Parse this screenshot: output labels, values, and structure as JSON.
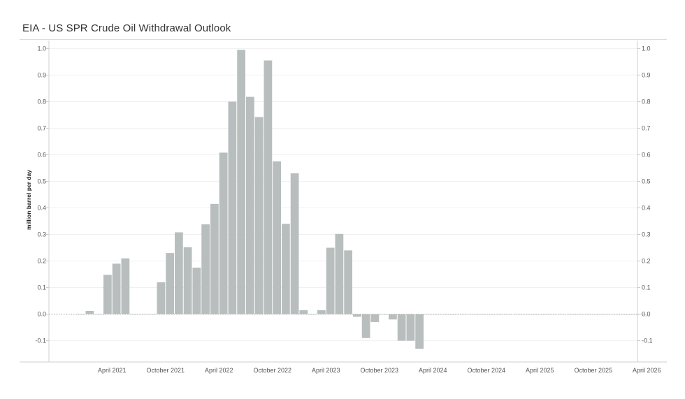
{
  "chart_data": {
    "type": "bar",
    "title": "EIA - US SPR Crude Oil Withdrawal Outlook",
    "ylabel": "million barrel per day",
    "xlabel": "",
    "ylim": [
      -0.18,
      1.03
    ],
    "y_ticks": [
      1.0,
      0.9,
      0.8,
      0.7,
      0.6,
      0.5,
      0.4,
      0.3,
      0.2,
      0.1,
      0.0,
      -0.1
    ],
    "y_tick_labels": [
      "1.0",
      "0.9",
      "0.8",
      "0.7",
      "0.6",
      "0.5",
      "0.4",
      "0.3",
      "0.2",
      "0.1",
      "0.0",
      "-0.1"
    ],
    "x_range": [
      "2020-09",
      "2026-05"
    ],
    "x_ticks": [
      {
        "month": "2021-04",
        "label": "April 2021"
      },
      {
        "month": "2021-10",
        "label": "October 2021"
      },
      {
        "month": "2022-04",
        "label": "April 2022"
      },
      {
        "month": "2022-10",
        "label": "October 2022"
      },
      {
        "month": "2023-04",
        "label": "April 2023"
      },
      {
        "month": "2023-10",
        "label": "October 2023"
      },
      {
        "month": "2024-04",
        "label": "April 2024"
      },
      {
        "month": "2024-10",
        "label": "October 2024"
      },
      {
        "month": "2025-04",
        "label": "April 2025"
      },
      {
        "month": "2025-10",
        "label": "October 2025"
      },
      {
        "month": "2026-04",
        "label": "April 2026"
      }
    ],
    "bar_color": "#b8bebd",
    "grid": true,
    "months": [
      "2020-12",
      "2021-01",
      "2021-02",
      "2021-03",
      "2021-04",
      "2021-05",
      "2021-06",
      "2021-07",
      "2021-08",
      "2021-09",
      "2021-10",
      "2021-11",
      "2021-12",
      "2022-01",
      "2022-02",
      "2022-03",
      "2022-04",
      "2022-05",
      "2022-06",
      "2022-07",
      "2022-08",
      "2022-09",
      "2022-10",
      "2022-11",
      "2022-12",
      "2023-01",
      "2023-02",
      "2023-03",
      "2023-04",
      "2023-05",
      "2023-06",
      "2023-07",
      "2023-08",
      "2023-09",
      "2023-10",
      "2023-11",
      "2023-12",
      "2024-01",
      "2024-02",
      "2024-03",
      "2024-04",
      "2024-05",
      "2024-06",
      "2024-07",
      "2024-08",
      "2024-09",
      "2024-10",
      "2024-11",
      "2024-12",
      "2025-01",
      "2025-02",
      "2025-03",
      "2025-04",
      "2025-05",
      "2025-06",
      "2025-07",
      "2025-08",
      "2025-09",
      "2025-10",
      "2025-11",
      "2025-12",
      "2026-01",
      "2026-02",
      "2026-03"
    ],
    "values": [
      0.0,
      0.012,
      0.0,
      0.148,
      0.19,
      0.21,
      0.0,
      0.0,
      0.0,
      0.12,
      0.23,
      0.308,
      0.252,
      0.175,
      0.338,
      0.415,
      0.608,
      0.8,
      0.995,
      0.818,
      0.742,
      0.955,
      0.575,
      0.34,
      0.53,
      0.015,
      0.0,
      0.015,
      0.25,
      0.302,
      0.24,
      -0.01,
      -0.09,
      -0.03,
      0.0,
      -0.02,
      -0.1,
      -0.1,
      -0.13,
      0.0,
      0.0,
      0.0,
      0.0,
      0.0,
      0.0,
      0.0,
      0.0,
      0.0,
      0.0,
      0.0,
      0.0,
      0.0,
      0.0,
      0.0,
      0.0,
      0.0,
      0.0,
      0.0,
      0.0,
      0.0,
      0.0,
      0.0,
      0.0,
      0.0
    ]
  }
}
